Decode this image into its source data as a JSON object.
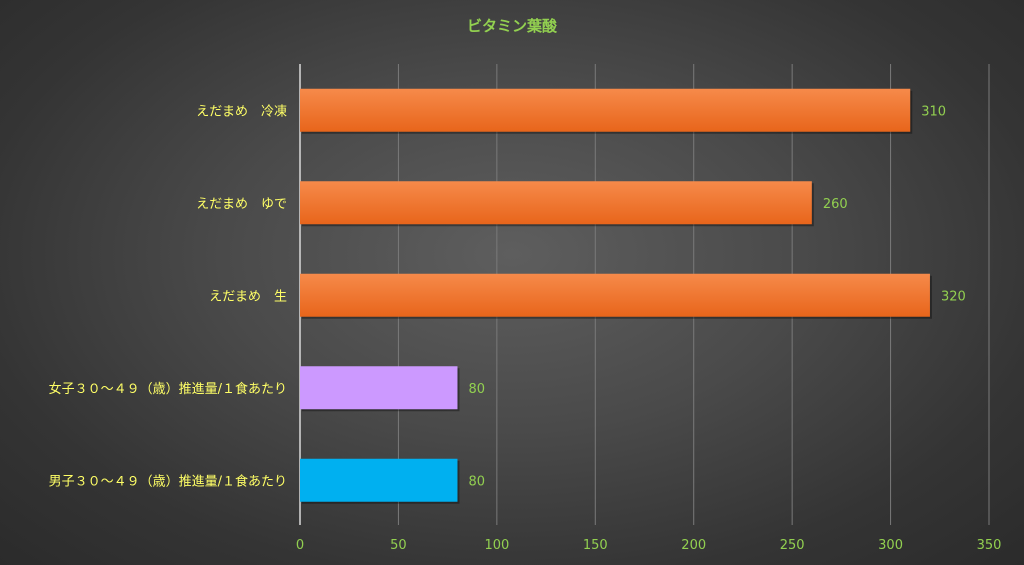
{
  "chart_data": {
    "type": "bar",
    "orientation": "horizontal",
    "title": "ビタミン葉酸",
    "xlabel": "",
    "ylabel": "",
    "xlim": [
      0,
      350
    ],
    "x_ticks": [
      "0",
      "50",
      "100",
      "150",
      "200",
      "250",
      "300",
      "350"
    ],
    "grid": true,
    "legend": "none",
    "categories": [
      "えだまめ　冷凍",
      "えだまめ　ゆで",
      "えだまめ　生",
      "女子３０～４９（歳）推進量/１食あたり",
      "男子３０～４９（歳）推進量/１食あたり"
    ],
    "values": [
      310,
      260,
      320,
      80,
      80
    ],
    "bar_colors": [
      "#f07428",
      "#f07428",
      "#f07428",
      "#cc99ff",
      "#00b0f0"
    ],
    "colors": {
      "title": "#92d050",
      "category_label": "#ffff66",
      "tick_label": "#92d050",
      "data_label": "#92d050",
      "gridline": "#7a7a7a",
      "axis": "#d9d9d9"
    }
  }
}
